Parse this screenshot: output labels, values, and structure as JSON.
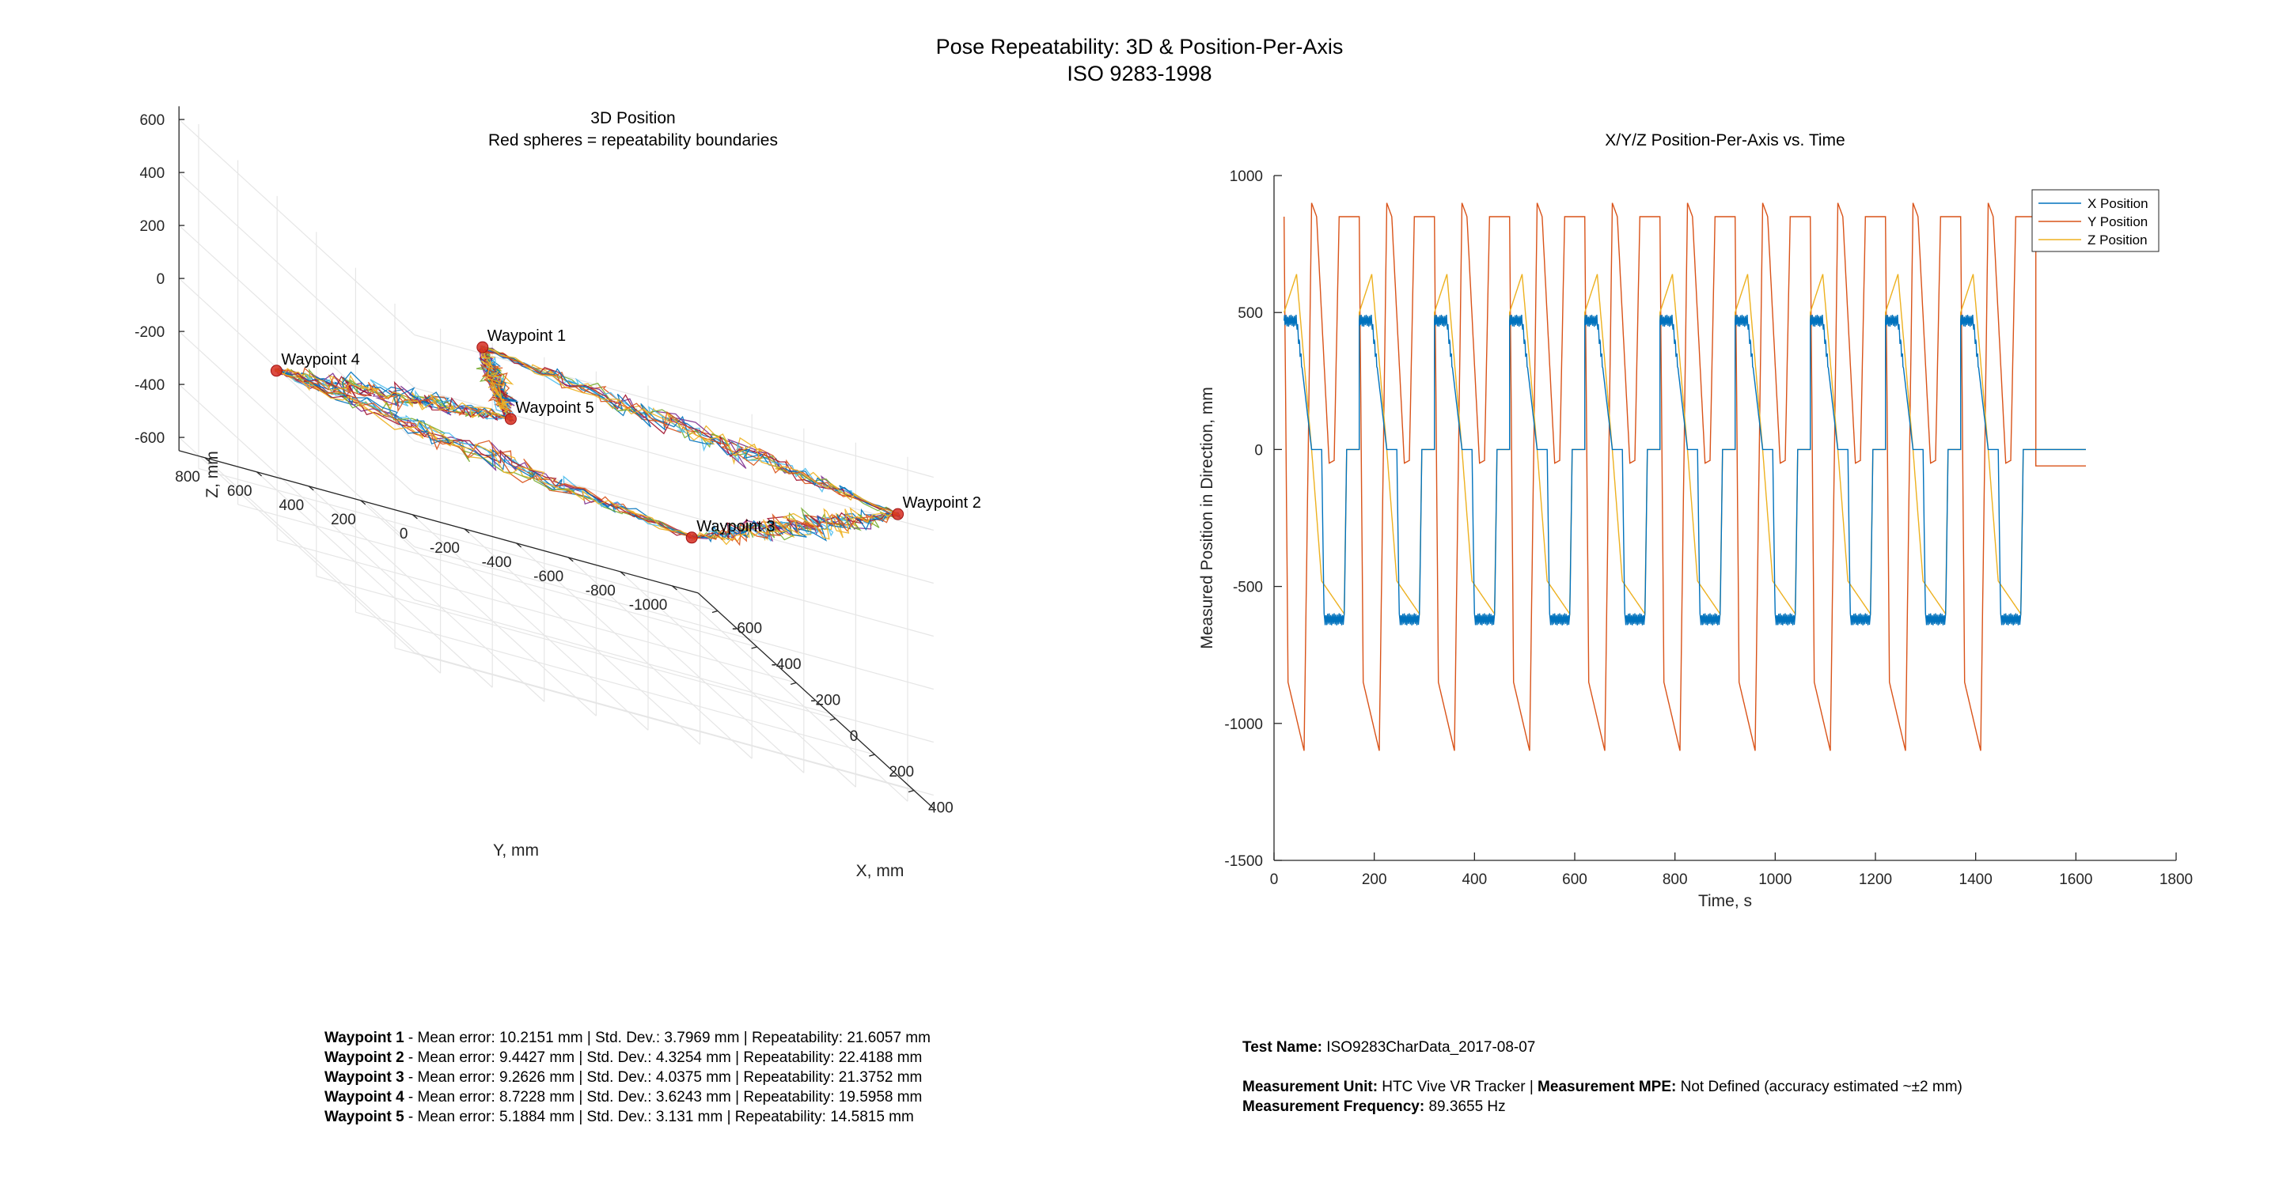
{
  "page": {
    "title_line1": "Pose Repeatability: 3D & Position-Per-Axis",
    "title_line2": "ISO 9283-1998"
  },
  "chart_data": [
    {
      "type": "line",
      "title": "3D Position",
      "subtitle": "Red spheres = repeatability boundaries",
      "xlabel": "X, mm",
      "ylabel": "Y, mm",
      "zlabel": "Z, mm",
      "x_ticks": [
        -600,
        -400,
        -200,
        0,
        200,
        400
      ],
      "y_ticks": [
        800,
        600,
        400,
        200,
        0,
        -200,
        -400,
        -600,
        -800,
        -1000
      ],
      "z_ticks": [
        600,
        400,
        200,
        0,
        -200,
        -400,
        -600
      ],
      "xlim": [
        -700,
        500
      ],
      "ylim": [
        -1100,
        900
      ],
      "zlim": [
        -650,
        650
      ],
      "grid": true,
      "waypoints": [
        {
          "label": "Waypoint 1",
          "x": 450,
          "y": 600,
          "z": 600
        },
        {
          "label": "Waypoint 2",
          "x": 450,
          "y": -1000,
          "z": 400
        },
        {
          "label": "Waypoint 3",
          "x": -600,
          "y": -1000,
          "z": -400
        },
        {
          "label": "Waypoint 4",
          "x": -600,
          "y": 600,
          "z": -200
        },
        {
          "label": "Waypoint 5",
          "x": -200,
          "y": 0,
          "z": 50
        }
      ],
      "path_order": [
        0,
        1,
        2,
        3,
        4,
        0
      ],
      "num_runs": 10,
      "run_colors": [
        "#0072bd",
        "#d95319",
        "#edb120",
        "#7e2f8e",
        "#77ac30",
        "#4dbeee",
        "#a2142f",
        "#0072bd",
        "#d95319",
        "#edb120"
      ]
    },
    {
      "type": "line",
      "title": "X/Y/Z Position-Per-Axis vs. Time",
      "xlabel": "Time, s",
      "ylabel": "Measured Position in Direction, mm",
      "xlim": [
        0,
        1800
      ],
      "ylim": [
        -1500,
        1000
      ],
      "x_ticks": [
        0,
        200,
        400,
        600,
        800,
        1000,
        1200,
        1400,
        1600,
        1800
      ],
      "y_ticks": [
        1000,
        500,
        0,
        -500,
        -1000,
        -1500
      ],
      "legend": "top-right",
      "cycle_period": 150,
      "cycle_start": 20,
      "num_cycles": 10,
      "end_time": 1620,
      "series": [
        {
          "name": "X Position",
          "color": "#0072bd",
          "cycle_levels": [
            [
              0,
              470
            ],
            [
              25,
              470
            ],
            [
              55,
              0
            ],
            [
              75,
              0
            ],
            [
              80,
              -620
            ],
            [
              120,
              -620
            ],
            [
              125,
              0
            ],
            [
              150,
              0
            ]
          ],
          "final_value": 0
        },
        {
          "name": "Y Position",
          "color": "#d95319",
          "cycle_levels": [
            [
              0,
              850
            ],
            [
              8,
              -850
            ],
            [
              40,
              -1100
            ],
            [
              55,
              900
            ],
            [
              65,
              850
            ],
            [
              90,
              -50
            ],
            [
              100,
              -40
            ],
            [
              110,
              850
            ],
            [
              150,
              850
            ]
          ],
          "final_value": -60
        },
        {
          "name": "Z Position",
          "color": "#edb120",
          "cycle_levels": [
            [
              0,
              500
            ],
            [
              25,
              640
            ],
            [
              55,
              0
            ],
            [
              75,
              -480
            ],
            [
              120,
              -600
            ],
            [
              125,
              0
            ],
            [
              150,
              0
            ]
          ],
          "final_value": 0
        }
      ]
    }
  ],
  "stats": {
    "waypoints": [
      {
        "name": "Waypoint 1",
        "text": " - Mean error: 10.2151 mm | Std. Dev.: 3.7969 mm | Repeatability: 21.6057 mm"
      },
      {
        "name": "Waypoint 2",
        "text": " - Mean error: 9.4427 mm | Std. Dev.: 4.3254 mm | Repeatability: 22.4188 mm"
      },
      {
        "name": "Waypoint 3",
        "text": " - Mean error: 9.2626 mm | Std. Dev.: 4.0375 mm | Repeatability: 21.3752 mm"
      },
      {
        "name": "Waypoint 4",
        "text": " - Mean error: 8.7228 mm | Std. Dev.: 3.6243 mm | Repeatability: 19.5958 mm"
      },
      {
        "name": "Waypoint 5",
        "text": " - Mean error: 5.1884 mm | Std. Dev.: 3.131 mm | Repeatability: 14.5815 mm"
      }
    ],
    "test_name_label": "Test Name:",
    "test_name": " ISO9283CharData_2017-08-07",
    "unit_label": "Measurement Unit:",
    "unit_value": " HTC Vive VR Tracker |  ",
    "mpe_label": "Measurement MPE:",
    "mpe_value": " Not Defined (accuracy estimated ~±2 mm)",
    "freq_label": "Measurement Frequency:",
    "freq_value": " 89.3655 Hz"
  }
}
